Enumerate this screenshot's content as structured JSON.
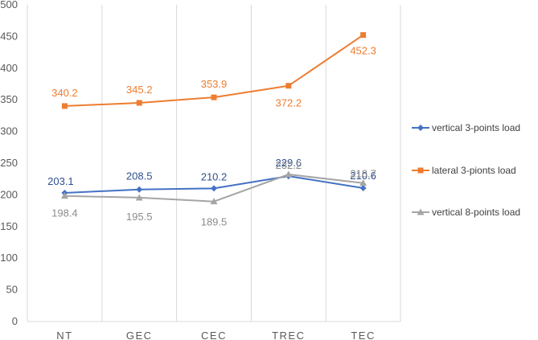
{
  "chart_data": {
    "type": "line",
    "categories": [
      "NT",
      "GEC",
      "CEC",
      "TREC",
      "TEC"
    ],
    "ylim": [
      0,
      500
    ],
    "yticks": [
      0,
      50,
      100,
      150,
      200,
      250,
      300,
      350,
      400,
      450,
      500
    ],
    "grid": "vertical",
    "legend_position": "right",
    "series": [
      {
        "name": "vertical 3-points load",
        "values": [
          203.1,
          208.5,
          210.2,
          229.6,
          210.6
        ],
        "labels": [
          "203.1",
          "208.5",
          "210.2",
          "229.6",
          "210.6"
        ],
        "color": "#4472C4",
        "marker": "diamond",
        "label_color": "#2F4F8F"
      },
      {
        "name": "lateral 3-pionts load",
        "values": [
          340.2,
          345.2,
          353.9,
          372.2,
          452.3
        ],
        "labels": [
          "340.2",
          "345.2",
          "353.9",
          "372.2",
          "452.3"
        ],
        "color": "#ED7D31",
        "marker": "square",
        "label_color": "#ED7D31"
      },
      {
        "name": "vertical 8-points load",
        "values": [
          198.4,
          195.5,
          189.5,
          232.2,
          218.7
        ],
        "labels": [
          "198.4",
          "195.5",
          "189.5",
          "232.2",
          "218.7"
        ],
        "color": "#A5A5A5",
        "marker": "triangle",
        "label_color": "#8C8C8C"
      }
    ]
  }
}
